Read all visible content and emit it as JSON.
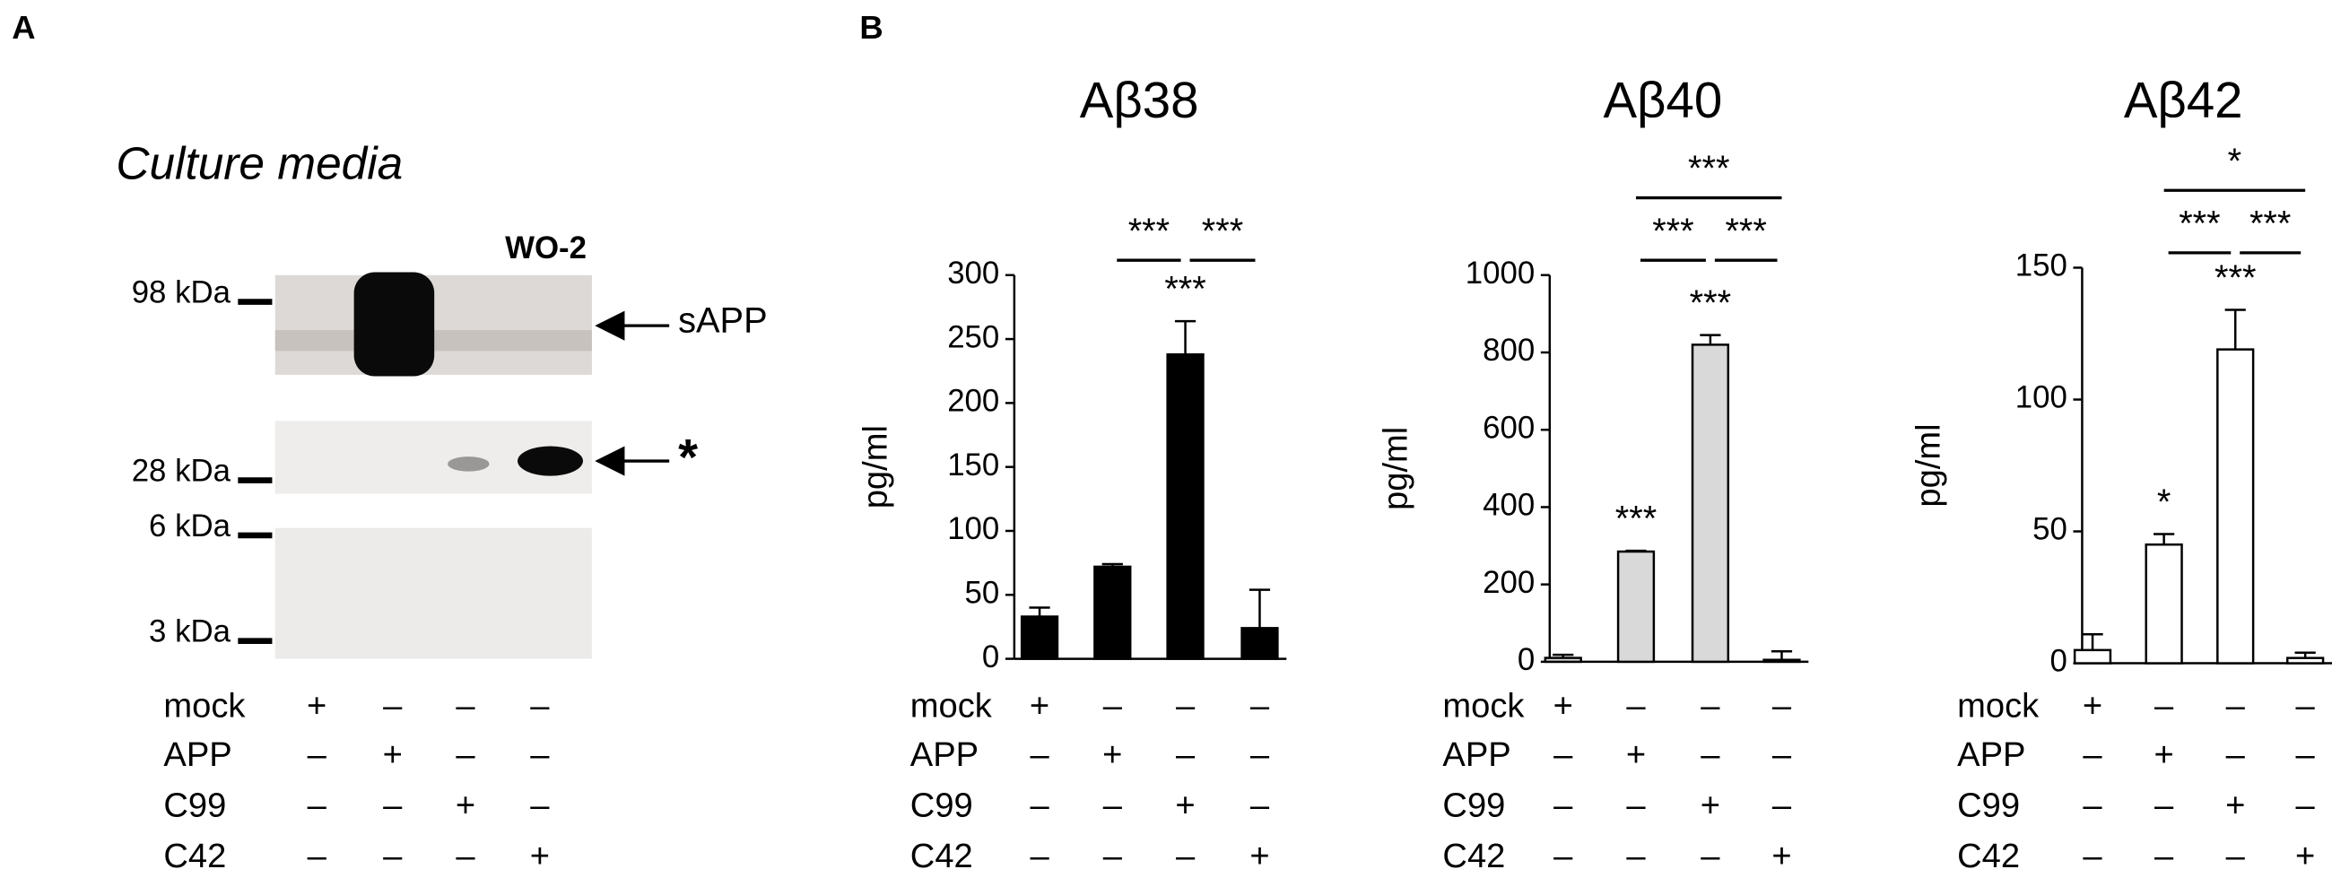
{
  "panel_labels": [
    "A",
    "B"
  ],
  "blot": {
    "title": "Culture media",
    "antibody": "WO-2",
    "markers": [
      "98 kDa",
      "28 kDa",
      "6 kDa",
      "3 kDa"
    ],
    "arrows": [
      "sAPP",
      "*"
    ],
    "conditions": [
      {
        "name": "mock",
        "signs": [
          "+",
          "–",
          "–",
          "–"
        ]
      },
      {
        "name": "APP",
        "signs": [
          "–",
          "+",
          "–",
          "–"
        ]
      },
      {
        "name": "C99",
        "signs": [
          "–",
          "–",
          "+",
          "–"
        ]
      },
      {
        "name": "C42",
        "signs": [
          "–",
          "–",
          "–",
          "+"
        ]
      }
    ]
  },
  "chart_data": [
    {
      "type": "bar",
      "title": "Aβ38",
      "ylabel": "pg/ml",
      "values": [
        33,
        72,
        238,
        24
      ],
      "errors": [
        7,
        2,
        26,
        30
      ],
      "color": "#000000",
      "ylim": [
        0,
        300
      ],
      "yticks": [
        0,
        50,
        100,
        150,
        200,
        250,
        300
      ],
      "annotations": [
        {
          "text": "***",
          "bar": 2
        }
      ],
      "brackets": [
        {
          "text": "***",
          "from": 1,
          "to": 2
        },
        {
          "text": "***",
          "from": 2,
          "to": 3
        }
      ],
      "conditions": [
        {
          "name": "mock",
          "signs": [
            "+",
            "–",
            "–",
            "–"
          ]
        },
        {
          "name": "APP",
          "signs": [
            "–",
            "+",
            "–",
            "–"
          ]
        },
        {
          "name": "C99",
          "signs": [
            "–",
            "–",
            "+",
            "–"
          ]
        },
        {
          "name": "C42",
          "signs": [
            "–",
            "–",
            "–",
            "+"
          ]
        }
      ]
    },
    {
      "type": "bar",
      "title": "Aβ40",
      "ylabel": "pg/ml",
      "values": [
        10,
        285,
        820,
        5
      ],
      "errors": [
        8,
        2,
        25,
        22
      ],
      "color": "#d9d9d9",
      "ylim": [
        0,
        1000
      ],
      "yticks": [
        0,
        200,
        400,
        600,
        800,
        1000
      ],
      "annotations": [
        {
          "text": "***",
          "bar": 1
        },
        {
          "text": "***",
          "bar": 2
        }
      ],
      "brackets": [
        {
          "text": "***",
          "from": 1,
          "to": 2
        },
        {
          "text": "***",
          "from": 2,
          "to": 3
        },
        {
          "text": "***",
          "from": 1,
          "to": 3
        }
      ],
      "conditions": [
        {
          "name": "mock",
          "signs": [
            "+",
            "–",
            "–",
            "–"
          ]
        },
        {
          "name": "APP",
          "signs": [
            "–",
            "+",
            "–",
            "–"
          ]
        },
        {
          "name": "C99",
          "signs": [
            "–",
            "–",
            "+",
            "–"
          ]
        },
        {
          "name": "C42",
          "signs": [
            "–",
            "–",
            "–",
            "+"
          ]
        }
      ]
    },
    {
      "type": "bar",
      "title": "Aβ42",
      "ylabel": "pg/ml",
      "values": [
        5,
        45,
        119,
        2
      ],
      "errors": [
        6,
        4,
        15,
        2
      ],
      "color": "#ffffff",
      "ylim": [
        0,
        150
      ],
      "yticks": [
        0,
        50,
        100,
        150
      ],
      "annotations": [
        {
          "text": "*",
          "bar": 1
        },
        {
          "text": "***",
          "bar": 2
        }
      ],
      "brackets": [
        {
          "text": "***",
          "from": 1,
          "to": 2
        },
        {
          "text": "***",
          "from": 2,
          "to": 3
        },
        {
          "text": "*",
          "from": 1,
          "to": 3
        }
      ],
      "conditions": [
        {
          "name": "mock",
          "signs": [
            "+",
            "–",
            "–",
            "–"
          ]
        },
        {
          "name": "APP",
          "signs": [
            "–",
            "+",
            "–",
            "–"
          ]
        },
        {
          "name": "C99",
          "signs": [
            "–",
            "–",
            "+",
            "–"
          ]
        },
        {
          "name": "C42",
          "signs": [
            "–",
            "–",
            "–",
            "+"
          ]
        }
      ]
    }
  ]
}
